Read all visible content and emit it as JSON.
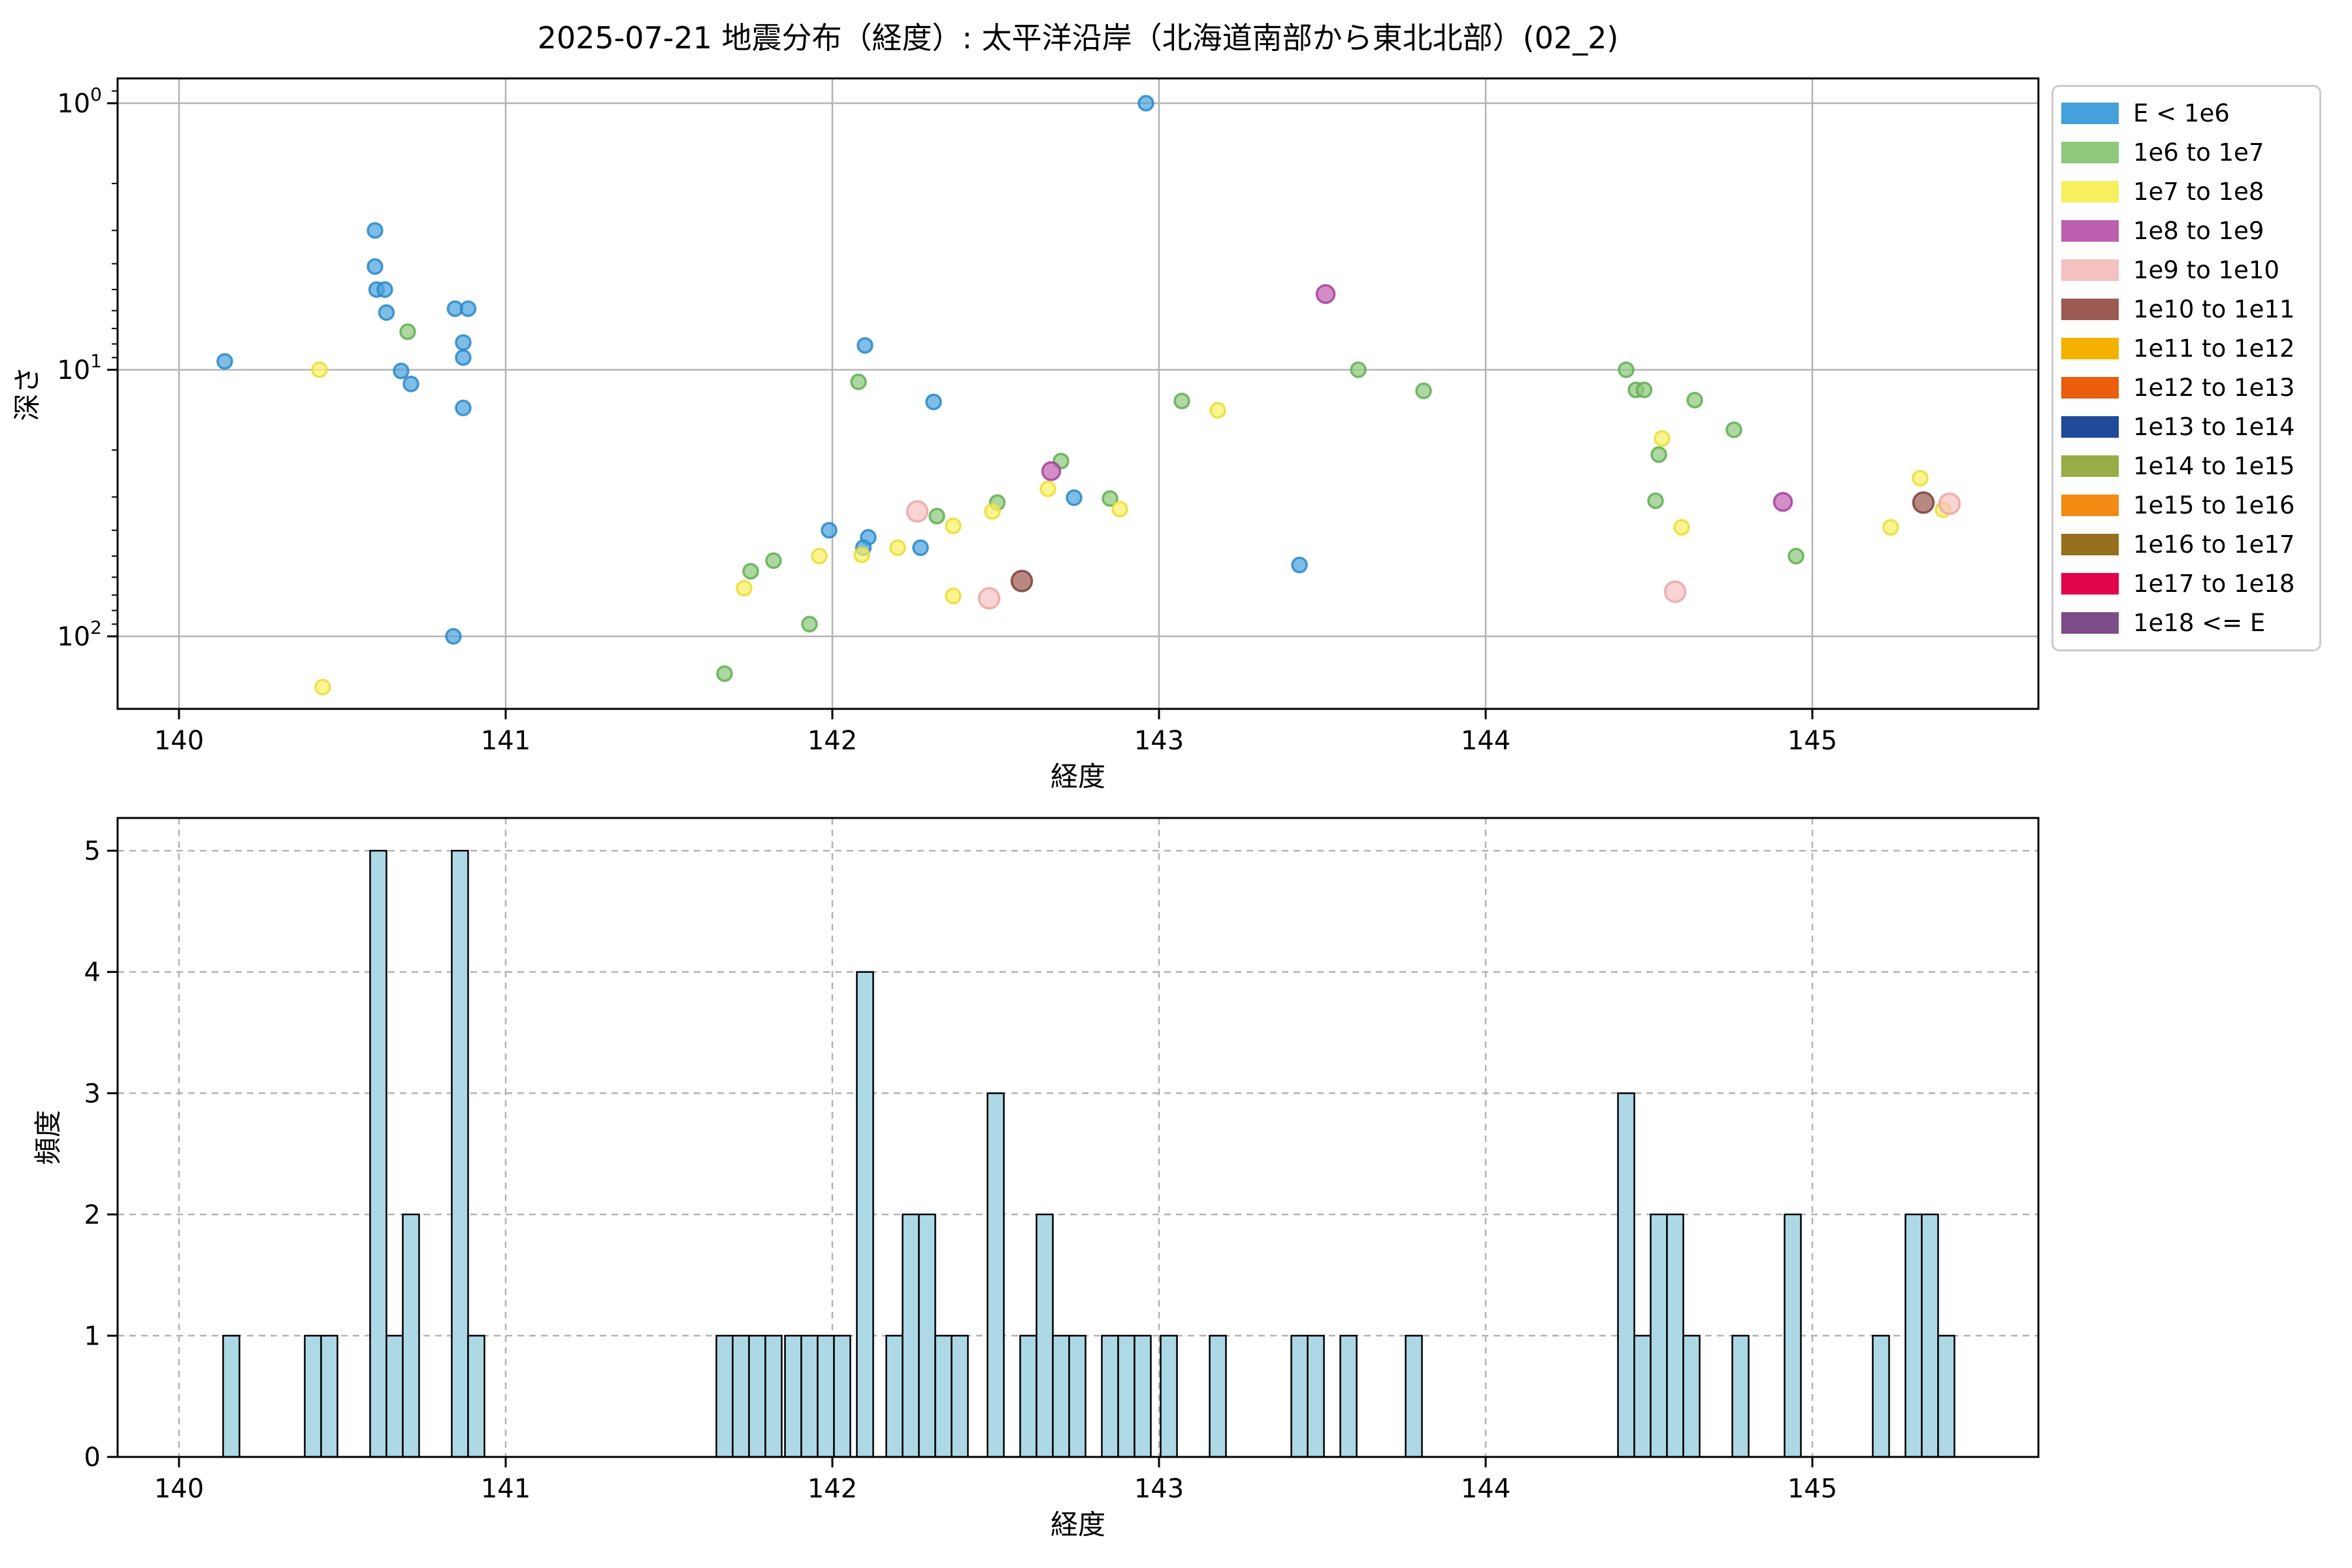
{
  "figure": {
    "title": "2025-07-21 地震分布（経度）: 太平洋沿岸（北海道南部から東北北部）(02_2)",
    "background": "#ffffff"
  },
  "legend": {
    "entries": [
      {
        "label": "E < 1e6",
        "color": "#45a1d9"
      },
      {
        "label": "1e6 to 1e7",
        "color": "#8dc87b"
      },
      {
        "label": "1e7 to 1e8",
        "color": "#f7ef5d"
      },
      {
        "label": "1e8 to 1e9",
        "color": "#bd5fb0"
      },
      {
        "label": "1e9 to 1e10",
        "color": "#f4c0c0"
      },
      {
        "label": "1e10 to 1e11",
        "color": "#9b5b52"
      },
      {
        "label": "1e11 to 1e12",
        "color": "#f3b200"
      },
      {
        "label": "1e12 to 1e13",
        "color": "#e95d0c"
      },
      {
        "label": "1e13 to 1e14",
        "color": "#1f4a99"
      },
      {
        "label": "1e14 to 1e15",
        "color": "#98ad48"
      },
      {
        "label": "1e15 to 1e16",
        "color": "#f28a14"
      },
      {
        "label": "1e16 to 1e17",
        "color": "#97701d"
      },
      {
        "label": "1e17 to 1e18",
        "color": "#e2064a"
      },
      {
        "label": "1e18 <= E",
        "color": "#7c4d87"
      }
    ]
  },
  "chart_data": [
    {
      "type": "scatter",
      "title": "2025-07-21 地震分布（経度）: 太平洋沿岸（北海道南部から東北北部）(02_2)",
      "xlabel": "経度",
      "ylabel": "深さ",
      "xlim": [
        139.812,
        145.692
      ],
      "ylim_depth_log_inverted": [
        0.81,
        187
      ],
      "x_ticks": [
        {
          "v": 140,
          "label": "140"
        },
        {
          "v": 141,
          "label": "141"
        },
        {
          "v": 142,
          "label": "142"
        },
        {
          "v": 143,
          "label": "143"
        },
        {
          "v": 144,
          "label": "144"
        },
        {
          "v": 145,
          "label": "145"
        }
      ],
      "y_ticks": [
        {
          "v": 1,
          "base": "10",
          "exp": "0"
        },
        {
          "v": 10,
          "base": "10",
          "exp": "1"
        },
        {
          "v": 100,
          "base": "10",
          "exp": "2"
        }
      ],
      "grid": "solid",
      "legend_position": "upper-right-outside",
      "series": [
        {
          "name": "E < 1e6",
          "fill": "#4ba3dc",
          "stroke": "#2a87c8",
          "radius": 11,
          "points": [
            [
              140.14,
              9.3
            ],
            [
              140.6,
              3.0
            ],
            [
              140.6,
              4.1
            ],
            [
              140.605,
              5.0
            ],
            [
              140.63,
              5.0
            ],
            [
              140.635,
              6.1
            ],
            [
              140.68,
              10.1
            ],
            [
              140.71,
              11.3
            ],
            [
              140.845,
              5.9
            ],
            [
              140.885,
              5.9
            ],
            [
              140.87,
              7.9
            ],
            [
              140.87,
              9.0
            ],
            [
              140.87,
              13.9
            ],
            [
              140.84,
              100
            ],
            [
              141.99,
              40
            ],
            [
              142.1,
              8.1
            ],
            [
              142.11,
              42.5
            ],
            [
              142.095,
              46.5
            ],
            [
              142.27,
              46.5
            ],
            [
              142.31,
              13.2
            ],
            [
              142.74,
              30.2
            ],
            [
              142.96,
              1.0
            ],
            [
              143.43,
              54
            ]
          ]
        },
        {
          "name": "1e6 to 1e7",
          "fill": "#8ec97d",
          "stroke": "#5fae52",
          "radius": 11,
          "points": [
            [
              140.7,
              7.2
            ],
            [
              141.67,
              138
            ],
            [
              141.75,
              57
            ],
            [
              141.82,
              52
            ],
            [
              141.93,
              90
            ],
            [
              142.08,
              11.1
            ],
            [
              142.32,
              35.4
            ],
            [
              142.505,
              31.5
            ],
            [
              142.7,
              22
            ],
            [
              142.85,
              30.4
            ],
            [
              143.07,
              13.1
            ],
            [
              143.61,
              10.0
            ],
            [
              143.81,
              12.0
            ],
            [
              144.43,
              10.0
            ],
            [
              144.46,
              11.9
            ],
            [
              144.485,
              11.9
            ],
            [
              144.53,
              20.8
            ],
            [
              144.52,
              31.0
            ],
            [
              144.64,
              13.0
            ],
            [
              144.76,
              16.8
            ],
            [
              144.95,
              50.0
            ]
          ]
        },
        {
          "name": "1e7 to 1e8",
          "fill": "#f9f167",
          "stroke": "#eadc35",
          "radius": 11,
          "points": [
            [
              140.43,
              10.0
            ],
            [
              140.44,
              155
            ],
            [
              141.73,
              66
            ],
            [
              141.96,
              50
            ],
            [
              142.09,
              49.5
            ],
            [
              142.2,
              46.5
            ],
            [
              142.37,
              38.5
            ],
            [
              142.37,
              70.5
            ],
            [
              142.49,
              34
            ],
            [
              142.66,
              28
            ],
            [
              142.88,
              33.3
            ],
            [
              143.18,
              14.2
            ],
            [
              144.54,
              18.1
            ],
            [
              144.6,
              39
            ],
            [
              145.24,
              39
            ],
            [
              145.33,
              25.5
            ],
            [
              145.4,
              33.5
            ]
          ]
        },
        {
          "name": "1e8 to 1e9",
          "fill": "#c263b3",
          "stroke": "#a53f99",
          "radius": 13.5,
          "points": [
            [
              142.67,
              24
            ],
            [
              143.51,
              5.2
            ],
            [
              144.91,
              31.3
            ]
          ]
        },
        {
          "name": "1e9 to 1e10",
          "fill": "#f6c4c4",
          "stroke": "#eca3a4",
          "radius": 15.5,
          "points": [
            [
              142.26,
              34
            ],
            [
              142.48,
              72
            ],
            [
              144.58,
              68
            ],
            [
              145.42,
              31.8
            ]
          ]
        },
        {
          "name": "1e10 to 1e11",
          "fill": "#9d5c52",
          "stroke": "#7a4038",
          "radius": 15.5,
          "points": [
            [
              142.58,
              62
            ],
            [
              145.34,
              31.5
            ]
          ]
        }
      ]
    },
    {
      "type": "bar",
      "xlabel": "経度",
      "ylabel": "頻度",
      "xlim": [
        139.812,
        145.692
      ],
      "ylim": [
        0,
        5.27
      ],
      "x_ticks": [
        {
          "v": 140,
          "label": "140"
        },
        {
          "v": 141,
          "label": "141"
        },
        {
          "v": 142,
          "label": "142"
        },
        {
          "v": 143,
          "label": "143"
        },
        {
          "v": 144,
          "label": "144"
        },
        {
          "v": 145,
          "label": "145"
        }
      ],
      "y_ticks": [
        {
          "v": 0,
          "label": "0"
        },
        {
          "v": 1,
          "label": "1"
        },
        {
          "v": 2,
          "label": "2"
        },
        {
          "v": 3,
          "label": "3"
        },
        {
          "v": 4,
          "label": "4"
        },
        {
          "v": 5,
          "label": "5"
        }
      ],
      "grid": "dashed",
      "bar_width": 0.05,
      "bar_fill": "#add8e6",
      "bar_edge": "#000000",
      "bars": [
        {
          "x": 140.16,
          "h": 1
        },
        {
          "x": 140.41,
          "h": 1
        },
        {
          "x": 140.46,
          "h": 1
        },
        {
          "x": 140.61,
          "h": 5
        },
        {
          "x": 140.66,
          "h": 1
        },
        {
          "x": 140.71,
          "h": 2
        },
        {
          "x": 140.86,
          "h": 5
        },
        {
          "x": 140.91,
          "h": 1
        },
        {
          "x": 141.67,
          "h": 1
        },
        {
          "x": 141.72,
          "h": 1
        },
        {
          "x": 141.77,
          "h": 1
        },
        {
          "x": 141.82,
          "h": 1
        },
        {
          "x": 141.88,
          "h": 1
        },
        {
          "x": 141.93,
          "h": 1
        },
        {
          "x": 141.98,
          "h": 1
        },
        {
          "x": 142.03,
          "h": 1
        },
        {
          "x": 142.1,
          "h": 4
        },
        {
          "x": 142.19,
          "h": 1
        },
        {
          "x": 142.24,
          "h": 2
        },
        {
          "x": 142.29,
          "h": 2
        },
        {
          "x": 142.34,
          "h": 1
        },
        {
          "x": 142.39,
          "h": 1
        },
        {
          "x": 142.5,
          "h": 3
        },
        {
          "x": 142.6,
          "h": 1
        },
        {
          "x": 142.65,
          "h": 2
        },
        {
          "x": 142.7,
          "h": 1
        },
        {
          "x": 142.75,
          "h": 1
        },
        {
          "x": 142.85,
          "h": 1
        },
        {
          "x": 142.9,
          "h": 1
        },
        {
          "x": 142.95,
          "h": 1
        },
        {
          "x": 143.03,
          "h": 1
        },
        {
          "x": 143.18,
          "h": 1
        },
        {
          "x": 143.43,
          "h": 1
        },
        {
          "x": 143.48,
          "h": 1
        },
        {
          "x": 143.58,
          "h": 1
        },
        {
          "x": 143.78,
          "h": 1
        },
        {
          "x": 144.43,
          "h": 3
        },
        {
          "x": 144.48,
          "h": 1
        },
        {
          "x": 144.53,
          "h": 2
        },
        {
          "x": 144.58,
          "h": 2
        },
        {
          "x": 144.63,
          "h": 1
        },
        {
          "x": 144.78,
          "h": 1
        },
        {
          "x": 144.94,
          "h": 2
        },
        {
          "x": 145.21,
          "h": 1
        },
        {
          "x": 145.31,
          "h": 2
        },
        {
          "x": 145.36,
          "h": 2
        },
        {
          "x": 145.41,
          "h": 1
        }
      ]
    }
  ]
}
